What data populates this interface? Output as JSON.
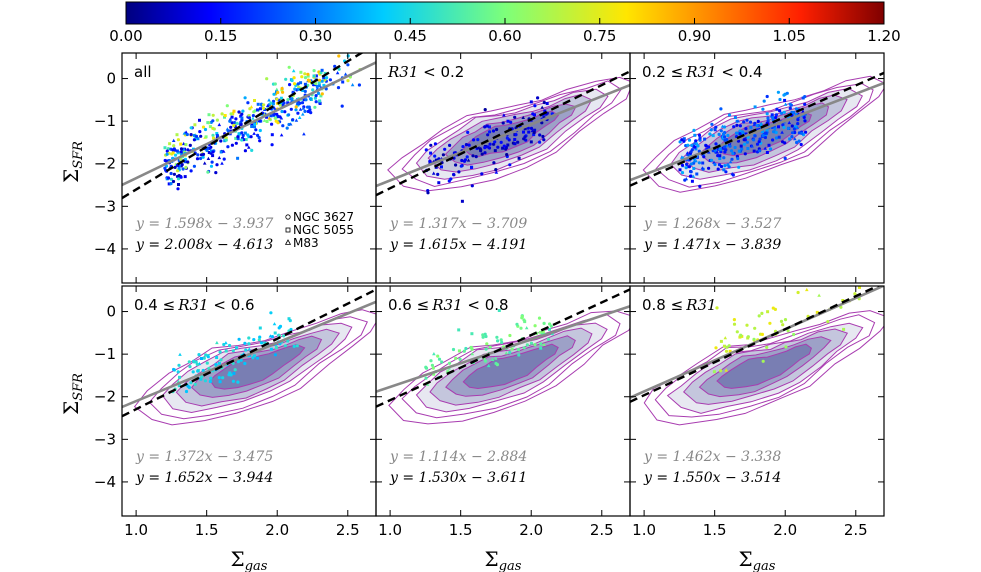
{
  "chart_data": {
    "type": "scatter",
    "title": "",
    "xlabel": "Σgas",
    "ylabel": "ΣSFR",
    "xlim": [
      0.9,
      2.7
    ],
    "ylim": [
      -4.8,
      0.6
    ],
    "xticks": [
      "1.0",
      "1.5",
      "2.0",
      "2.5"
    ],
    "yticks": [
      "0",
      "−1",
      "−2",
      "−3",
      "−4"
    ],
    "colorbar": {
      "label_ticks": [
        "0.00",
        "0.15",
        "0.30",
        "0.45",
        "0.60",
        "0.75",
        "0.90",
        "1.05",
        "1.20"
      ],
      "range": [
        0.0,
        1.2
      ],
      "colormap": [
        "#00007f",
        "#0000ff",
        "#007fff",
        "#00ffff",
        "#7fff7f",
        "#ffff00",
        "#ff7f00",
        "#ff0000",
        "#7f0000"
      ]
    },
    "legend": [
      "NGC 3627",
      "NGC 5055",
      "M83"
    ],
    "colors": {
      "grey_fit": "#888888",
      "black_fit": "#000000",
      "contour": "#a83cb0",
      "fill": "#3b3f8f"
    },
    "panels": [
      {
        "label": "all",
        "fit_grey": {
          "slope": 1.598,
          "intercept": -3.937,
          "text": "y = 1.598x − 3.937"
        },
        "fit_black": {
          "slope": 2.008,
          "intercept": -4.613,
          "text": "y = 2.008x − 4.613"
        }
      },
      {
        "label_var": "R31",
        "label_prefix": "",
        "label_suffix": " < 0.2",
        "fit_grey": {
          "slope": 1.317,
          "intercept": -3.709,
          "text": "y = 1.317x − 3.709"
        },
        "fit_black": {
          "slope": 1.615,
          "intercept": -4.191,
          "text": "y = 1.615x − 4.191"
        }
      },
      {
        "label_var": "R31",
        "label_prefix": "0.2  ≤",
        "label_suffix": " < 0.4",
        "fit_grey": {
          "slope": 1.268,
          "intercept": -3.527,
          "text": "y = 1.268x − 3.527"
        },
        "fit_black": {
          "slope": 1.471,
          "intercept": -3.839,
          "text": "y = 1.471x − 3.839"
        }
      },
      {
        "label_var": "R31",
        "label_prefix": "0.4  ≤",
        "label_suffix": " < 0.6",
        "fit_grey": {
          "slope": 1.372,
          "intercept": -3.475,
          "text": "y = 1.372x − 3.475"
        },
        "fit_black": {
          "slope": 1.652,
          "intercept": -3.944,
          "text": "y = 1.652x − 3.944"
        }
      },
      {
        "label_var": "R31",
        "label_prefix": "0.6  ≤",
        "label_suffix": " < 0.8",
        "fit_grey": {
          "slope": 1.114,
          "intercept": -2.884,
          "text": "y = 1.114x − 2.884"
        },
        "fit_black": {
          "slope": 1.53,
          "intercept": -3.611,
          "text": "y = 1.530x − 3.611"
        }
      },
      {
        "label_var": "R31",
        "label_prefix": "0.8  ≤",
        "label_suffix": "",
        "fit_grey": {
          "slope": 1.462,
          "intercept": -3.338,
          "text": "y = 1.462x − 3.338"
        },
        "fit_black": {
          "slope": 1.55,
          "intercept": -3.514,
          "text": "y = 1.550x − 3.514"
        }
      }
    ]
  }
}
